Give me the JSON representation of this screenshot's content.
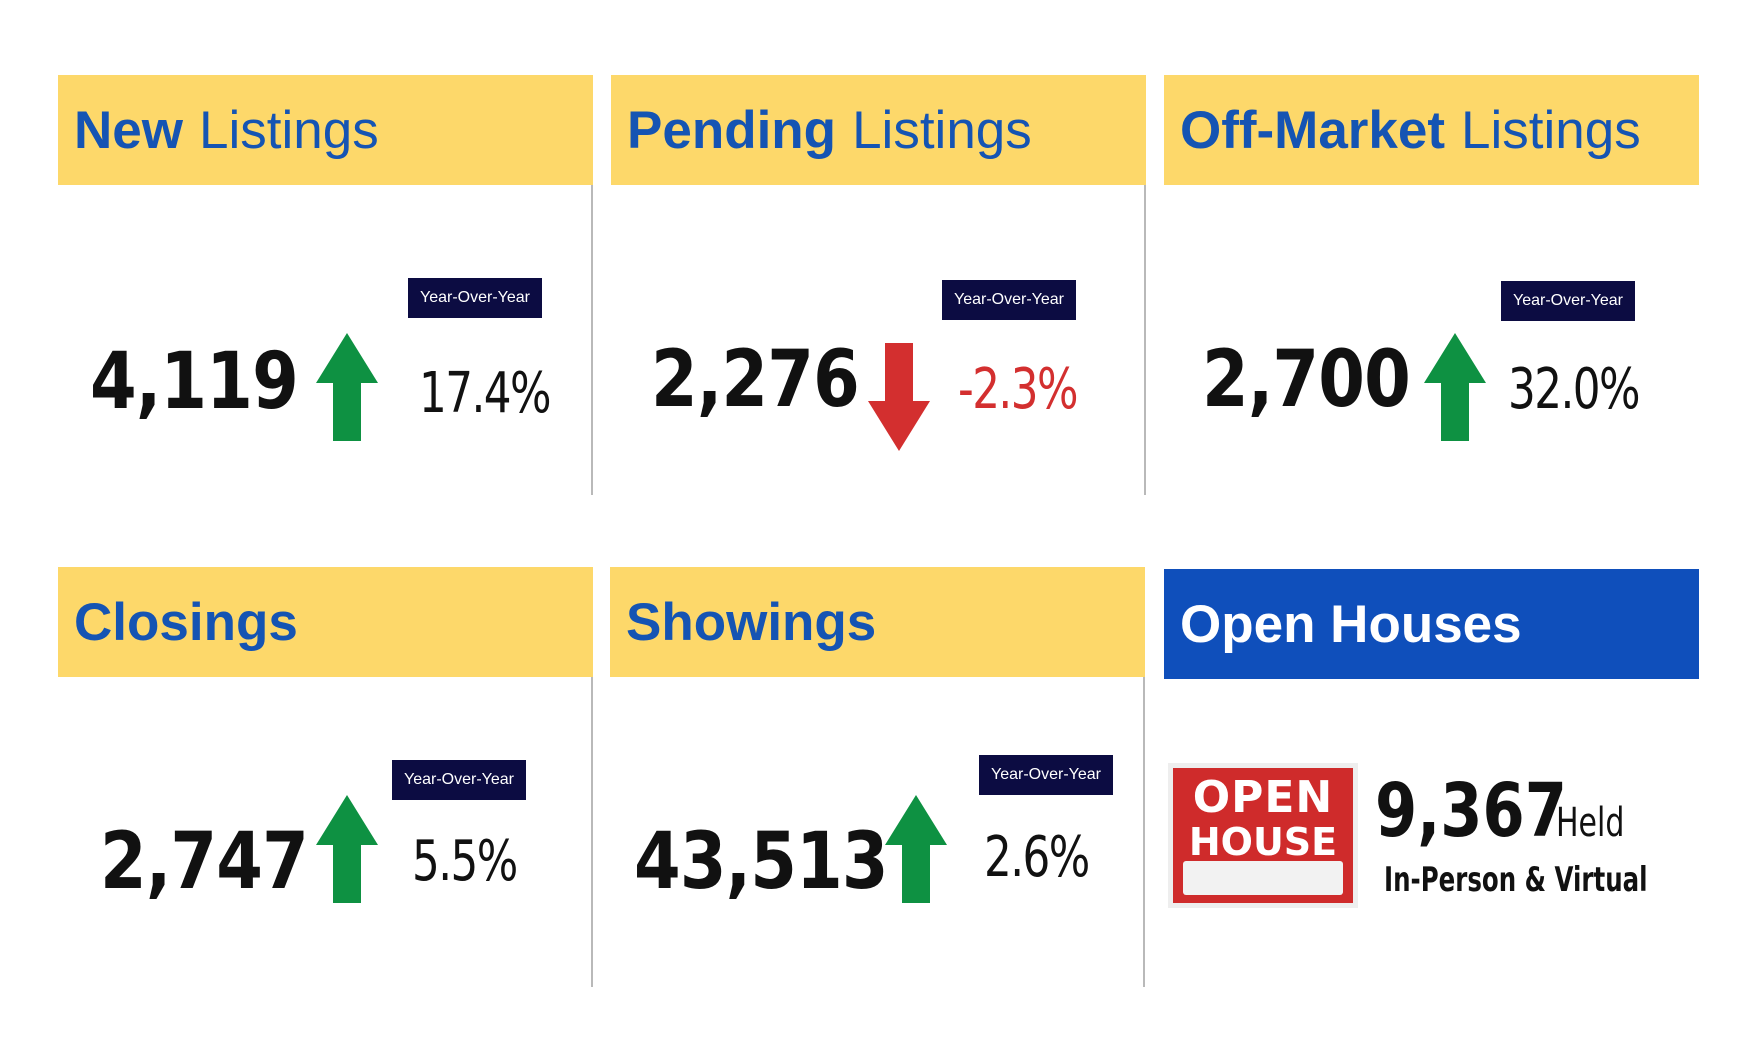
{
  "colors": {
    "header_yellow": "#fdd86a",
    "header_blue": "#0f4fbb",
    "title_blue": "#1554b3",
    "badge_navy": "#0c0c42",
    "up_green": "#0e9142",
    "down_red": "#d32f2f"
  },
  "cards": {
    "new_listings": {
      "title_bold": "New",
      "title_rest": "Listings",
      "value": "4,119",
      "badge": "Year-Over-Year",
      "trend": "up-arrow-icon",
      "change": "17.4%"
    },
    "pending_listings": {
      "title_bold": "Pending",
      "title_rest": "Listings",
      "value": "2,276",
      "badge": "Year-Over-Year",
      "trend": "down-arrow-icon",
      "change": "-2.3%"
    },
    "off_market_listings": {
      "title_bold": "Off-Market",
      "title_rest": "Listings",
      "value": "2,700",
      "badge": "Year-Over-Year",
      "trend": "up-arrow-icon",
      "change": "32.0%"
    },
    "closings": {
      "title_bold": "Closings",
      "value": "2,747",
      "badge": "Year-Over-Year",
      "trend": "up-arrow-icon",
      "change": "5.5%"
    },
    "showings": {
      "title_bold": "Showings",
      "value": "43,513",
      "badge": "Year-Over-Year",
      "trend": "up-arrow-icon",
      "change": "2.6%"
    },
    "open_houses": {
      "title_bold": "Open Houses",
      "sign_line1": "OPEN",
      "sign_line2": "HOUSE",
      "value": "9,367",
      "unit": "Held",
      "subtitle": "In-Person & Virtual"
    }
  }
}
